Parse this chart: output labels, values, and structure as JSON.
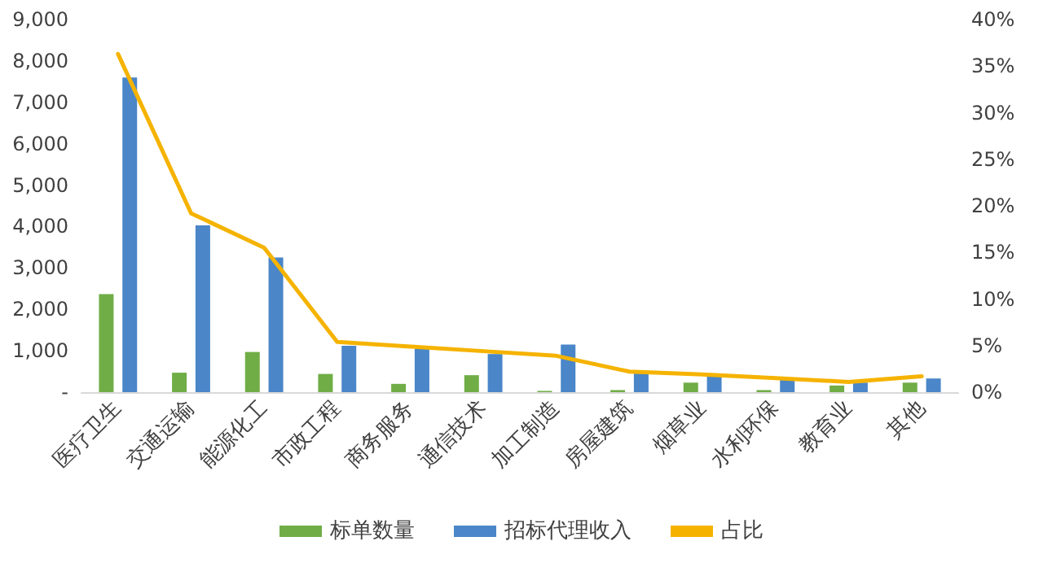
{
  "chart_data": {
    "type": "bar",
    "categories": [
      "医疗卫生",
      "交通运输",
      "能源化工",
      "市政工程",
      "商务服务",
      "通信技术",
      "加工制造",
      "房屋建筑",
      "烟草业",
      "水利环保",
      "教育业",
      "其他"
    ],
    "series": [
      {
        "name": "标单数量",
        "color": "#70ad47",
        "values": [
          2370,
          470,
          970,
          440,
          200,
          410,
          30,
          50,
          230,
          50,
          160,
          230
        ]
      },
      {
        "name": "招标代理收入",
        "color": "#4a86c8",
        "values": [
          7600,
          4030,
          3250,
          1120,
          1050,
          920,
          1150,
          450,
          400,
          300,
          230,
          330
        ]
      },
      {
        "name": "占比",
        "type": "line",
        "axis": "y2",
        "color": "#f5b300",
        "values": [
          36.3,
          19.2,
          15.5,
          5.4,
          4.9,
          4.4,
          3.9,
          2.2,
          1.9,
          1.5,
          1.1,
          1.7
        ]
      }
    ],
    "ylim": [
      0,
      9000
    ],
    "yticks": [
      {
        "value": 0,
        "label": "-"
      },
      {
        "value": 1000,
        "label": "1,000"
      },
      {
        "value": 2000,
        "label": "2,000"
      },
      {
        "value": 3000,
        "label": "3,000"
      },
      {
        "value": 4000,
        "label": "4,000"
      },
      {
        "value": 5000,
        "label": "5,000"
      },
      {
        "value": 6000,
        "label": "6,000"
      },
      {
        "value": 7000,
        "label": "7,000"
      },
      {
        "value": 8000,
        "label": "8,000"
      },
      {
        "value": 9000,
        "label": "9,000"
      }
    ],
    "y2lim": [
      0,
      40
    ],
    "y2ticks": [
      {
        "value": 0,
        "label": "0%"
      },
      {
        "value": 5,
        "label": "5%"
      },
      {
        "value": 10,
        "label": "10%"
      },
      {
        "value": 15,
        "label": "15%"
      },
      {
        "value": 20,
        "label": "20%"
      },
      {
        "value": 25,
        "label": "25%"
      },
      {
        "value": 30,
        "label": "30%"
      },
      {
        "value": 35,
        "label": "35%"
      },
      {
        "value": 40,
        "label": "40%"
      }
    ],
    "grid": false,
    "legend": "bottom",
    "marker": "none",
    "line_style": "solid"
  }
}
